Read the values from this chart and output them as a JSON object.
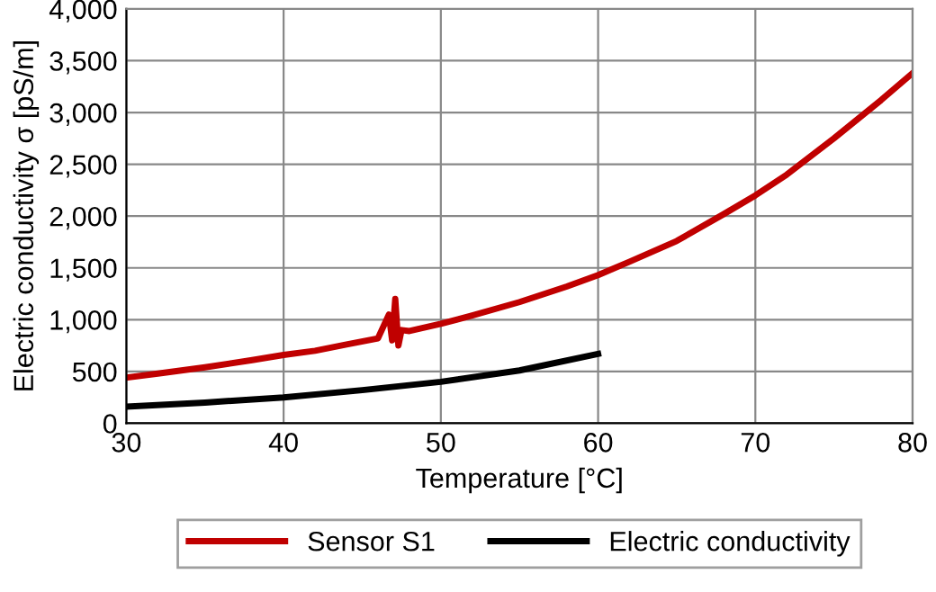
{
  "chart_data": {
    "type": "line",
    "xlabel": "Temperature [°C]",
    "ylabel": "Electric conductivity σ [pS/m]",
    "xlim": [
      30,
      80
    ],
    "xticks": [
      30,
      40,
      50,
      60,
      70,
      80
    ],
    "ylim": [
      0,
      4000
    ],
    "yticks": [
      0,
      {
        "value": 500,
        "label": "500"
      },
      {
        "value": 1000,
        "label": "1,000"
      },
      {
        "value": 1500,
        "label": "1,500"
      },
      {
        "value": 2000,
        "label": "2,000"
      },
      {
        "value": 2500,
        "label": "2,500"
      },
      {
        "value": 3000,
        "label": "3,000"
      },
      {
        "value": 3500,
        "label": "3,500"
      },
      {
        "value": 4000,
        "label": "4,000"
      }
    ],
    "grid": true,
    "legend": "bottom",
    "marker": "none",
    "line_style": "solid",
    "series": [
      {
        "name": "Sensor S1",
        "color": "#c00000",
        "x": [
          30,
          32,
          35,
          38,
          40,
          42,
          44,
          46,
          46.7,
          46.9,
          47.1,
          47.3,
          47.5,
          48,
          50,
          52,
          55,
          58,
          60,
          62,
          65,
          68,
          70,
          72,
          75,
          78,
          80
        ],
        "values": [
          440,
          480,
          540,
          610,
          660,
          700,
          760,
          820,
          1050,
          800,
          1200,
          750,
          900,
          890,
          960,
          1040,
          1170,
          1320,
          1430,
          1560,
          1760,
          2020,
          2200,
          2400,
          2750,
          3120,
          3380
        ]
      },
      {
        "name": "Electric conductivity",
        "color": "#000000",
        "x": [
          30,
          35,
          40,
          45,
          50,
          55,
          60
        ],
        "values": [
          160,
          200,
          250,
          320,
          400,
          510,
          670
        ]
      }
    ]
  }
}
